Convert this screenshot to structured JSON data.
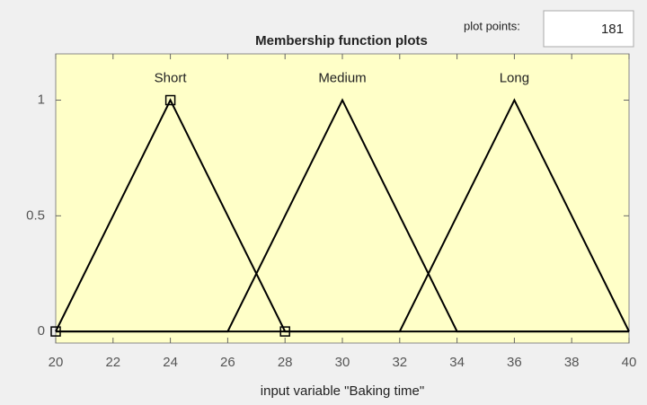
{
  "chart_data": {
    "type": "line",
    "title": "Membership function plots",
    "xlabel": "input variable \"Baking time\"",
    "plot_points_label": "plot points:",
    "plot_points": 181,
    "xlim": [
      20,
      40
    ],
    "ylim": [
      -0.05,
      1.2
    ],
    "xticks": [
      20,
      22,
      24,
      26,
      28,
      30,
      32,
      34,
      36,
      38,
      40
    ],
    "yticks": [
      0,
      0.5,
      1
    ],
    "selected_series": 0,
    "series": [
      {
        "name": "Short",
        "color": "#000000",
        "x": [
          20,
          24,
          28,
          40
        ],
        "values": [
          0,
          1,
          0,
          0
        ]
      },
      {
        "name": "Medium",
        "color": "#000000",
        "x": [
          20,
          26,
          30,
          34,
          40
        ],
        "values": [
          0,
          0,
          1,
          0,
          0
        ]
      },
      {
        "name": "Long",
        "color": "#000000",
        "x": [
          20,
          32,
          36,
          40
        ],
        "values": [
          0,
          0,
          1,
          0
        ]
      }
    ]
  }
}
